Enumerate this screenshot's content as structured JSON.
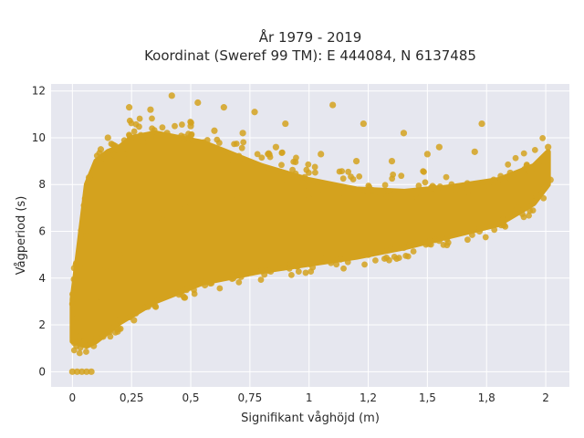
{
  "chart_data": {
    "type": "scatter",
    "title_lines": [
      "År 1979 - 2019",
      "Koordinat (Sweref 99 TM): E 444084, N 6137485"
    ],
    "xlabel": "Signifikant våghöjd (m)",
    "ylabel": "Vågperiod (s)",
    "xlim": [
      -0.09,
      2.1
    ],
    "ylim": [
      -0.65,
      12.3
    ],
    "x_ticks": [
      {
        "value": 0,
        "label": "0"
      },
      {
        "value": 0.25,
        "label": "0,25"
      },
      {
        "value": 0.5,
        "label": "0,5"
      },
      {
        "value": 0.75,
        "label": "0,75"
      },
      {
        "value": 1,
        "label": "1"
      },
      {
        "value": 1.25,
        "label": "1,2"
      },
      {
        "value": 1.5,
        "label": "1,5"
      },
      {
        "value": 1.75,
        "label": "1,8"
      },
      {
        "value": 2,
        "label": "2"
      }
    ],
    "y_ticks": [
      {
        "value": 0,
        "label": "0"
      },
      {
        "value": 2,
        "label": "2"
      },
      {
        "value": 4,
        "label": "4"
      },
      {
        "value": 6,
        "label": "6"
      },
      {
        "value": 8,
        "label": "8"
      },
      {
        "value": 10,
        "label": "10"
      },
      {
        "value": 12,
        "label": "12"
      }
    ],
    "grid": true,
    "marker_color": "#d4a21e",
    "plot_background": "#e6e7ef",
    "grid_color": "#ffffff",
    "point_cloud": [
      {
        "x": 0.0,
        "y": 2.9
      },
      {
        "x": 0.02,
        "y": 2.3
      },
      {
        "x": 0.03,
        "y": 1.5
      },
      {
        "x": 0.0,
        "y": 0.0
      },
      {
        "x": 0.02,
        "y": 0.0
      },
      {
        "x": 0.04,
        "y": 0.0
      },
      {
        "x": 0.06,
        "y": 0.0
      },
      {
        "x": 0.08,
        "y": 0.0
      },
      {
        "x": 0.05,
        "y": 1.3
      },
      {
        "x": 0.05,
        "y": 4.4
      },
      {
        "x": 0.06,
        "y": 5.8
      },
      {
        "x": 0.07,
        "y": 8.3
      },
      {
        "x": 0.09,
        "y": 1.1
      },
      {
        "x": 0.1,
        "y": 3.0
      },
      {
        "x": 0.11,
        "y": 6.2
      },
      {
        "x": 0.12,
        "y": 8.9
      },
      {
        "x": 0.13,
        "y": 1.5
      },
      {
        "x": 0.14,
        "y": 4.5
      },
      {
        "x": 0.12,
        "y": 9.5
      },
      {
        "x": 0.15,
        "y": 10.0
      },
      {
        "x": 0.18,
        "y": 2.0
      },
      {
        "x": 0.2,
        "y": 5.0
      },
      {
        "x": 0.22,
        "y": 9.3
      },
      {
        "x": 0.24,
        "y": 11.3
      },
      {
        "x": 0.26,
        "y": 2.2
      },
      {
        "x": 0.28,
        "y": 6.0
      },
      {
        "x": 0.3,
        "y": 9.8
      },
      {
        "x": 0.33,
        "y": 11.2
      },
      {
        "x": 0.35,
        "y": 2.8
      },
      {
        "x": 0.38,
        "y": 6.5
      },
      {
        "x": 0.4,
        "y": 10.2
      },
      {
        "x": 0.42,
        "y": 11.8
      },
      {
        "x": 0.45,
        "y": 3.3
      },
      {
        "x": 0.48,
        "y": 7.0
      },
      {
        "x": 0.5,
        "y": 10.5
      },
      {
        "x": 0.53,
        "y": 11.5
      },
      {
        "x": 0.56,
        "y": 3.7
      },
      {
        "x": 0.58,
        "y": 7.2
      },
      {
        "x": 0.6,
        "y": 10.3
      },
      {
        "x": 0.64,
        "y": 11.3
      },
      {
        "x": 0.68,
        "y": 4.0
      },
      {
        "x": 0.7,
        "y": 7.4
      },
      {
        "x": 0.72,
        "y": 10.2
      },
      {
        "x": 0.77,
        "y": 11.1
      },
      {
        "x": 0.8,
        "y": 4.3
      },
      {
        "x": 0.84,
        "y": 7.5
      },
      {
        "x": 0.86,
        "y": 9.6
      },
      {
        "x": 0.9,
        "y": 10.6
      },
      {
        "x": 0.95,
        "y": 4.5
      },
      {
        "x": 1.0,
        "y": 7.4
      },
      {
        "x": 1.05,
        "y": 9.3
      },
      {
        "x": 1.1,
        "y": 11.4
      },
      {
        "x": 1.1,
        "y": 4.8
      },
      {
        "x": 1.15,
        "y": 7.6
      },
      {
        "x": 1.2,
        "y": 9.0
      },
      {
        "x": 1.23,
        "y": 10.6
      },
      {
        "x": 1.25,
        "y": 5.0
      },
      {
        "x": 1.3,
        "y": 7.5
      },
      {
        "x": 1.35,
        "y": 9.0
      },
      {
        "x": 1.4,
        "y": 10.2
      },
      {
        "x": 1.4,
        "y": 5.3
      },
      {
        "x": 1.45,
        "y": 7.6
      },
      {
        "x": 1.5,
        "y": 9.3
      },
      {
        "x": 1.55,
        "y": 9.6
      },
      {
        "x": 1.55,
        "y": 5.6
      },
      {
        "x": 1.62,
        "y": 7.8
      },
      {
        "x": 1.7,
        "y": 9.4
      },
      {
        "x": 1.73,
        "y": 10.6
      },
      {
        "x": 1.72,
        "y": 6.0
      },
      {
        "x": 1.78,
        "y": 8.2
      },
      {
        "x": 1.82,
        "y": 6.5
      },
      {
        "x": 1.85,
        "y": 8.5
      },
      {
        "x": 1.88,
        "y": 7.0
      },
      {
        "x": 1.92,
        "y": 8.8
      },
      {
        "x": 1.96,
        "y": 7.6
      },
      {
        "x": 2.0,
        "y": 9.0
      },
      {
        "x": 2.01,
        "y": 9.6
      },
      {
        "x": 2.02,
        "y": 8.2
      }
    ],
    "dense_region": [
      {
        "x": 0.0,
        "y_min": 1.3,
        "y_max": 3.1
      },
      {
        "x": 0.03,
        "y_min": 1.2,
        "y_max": 5.5
      },
      {
        "x": 0.06,
        "y_min": 1.1,
        "y_max": 8.0
      },
      {
        "x": 0.1,
        "y_min": 1.3,
        "y_max": 9.0
      },
      {
        "x": 0.15,
        "y_min": 1.7,
        "y_max": 9.4
      },
      {
        "x": 0.2,
        "y_min": 2.1,
        "y_max": 9.6
      },
      {
        "x": 0.25,
        "y_min": 2.4,
        "y_max": 10.0
      },
      {
        "x": 0.35,
        "y_min": 3.0,
        "y_max": 10.2
      },
      {
        "x": 0.45,
        "y_min": 3.4,
        "y_max": 10.0
      },
      {
        "x": 0.55,
        "y_min": 3.8,
        "y_max": 9.8
      },
      {
        "x": 0.65,
        "y_min": 4.0,
        "y_max": 9.4
      },
      {
        "x": 0.8,
        "y_min": 4.3,
        "y_max": 8.8
      },
      {
        "x": 1.0,
        "y_min": 4.6,
        "y_max": 8.2
      },
      {
        "x": 1.2,
        "y_min": 4.9,
        "y_max": 7.8
      },
      {
        "x": 1.4,
        "y_min": 5.3,
        "y_max": 7.7
      },
      {
        "x": 1.6,
        "y_min": 5.8,
        "y_max": 7.9
      },
      {
        "x": 1.8,
        "y_min": 6.3,
        "y_max": 8.2
      },
      {
        "x": 1.95,
        "y_min": 7.2,
        "y_max": 8.8
      },
      {
        "x": 2.01,
        "y_min": 8.0,
        "y_max": 9.4
      }
    ]
  }
}
